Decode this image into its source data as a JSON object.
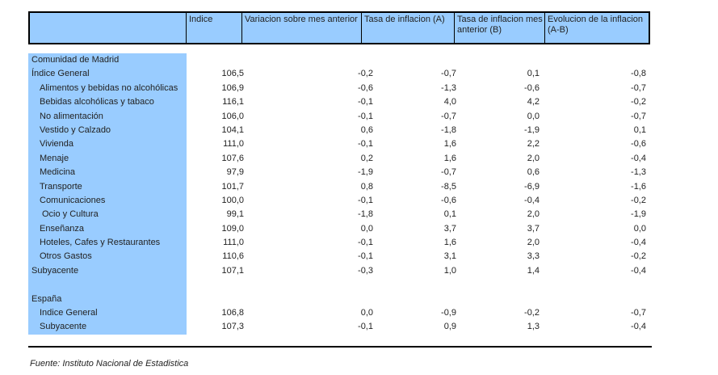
{
  "colors": {
    "header_bg": "#99CCFF",
    "label_col_bg": "#99CCFF",
    "border": "#000000",
    "text": "#222222"
  },
  "header": {
    "columns": [
      "",
      "Indice",
      "Variacion sobre mes anterior",
      "Tasa de inflacion (A)",
      "Tasa de inflacion mes anterior (B)",
      "Evolucion de la inflacion (A-B)"
    ]
  },
  "table": {
    "column_keys": [
      "indice",
      "variacion",
      "tasa-a",
      "tasa-b",
      "evolucion"
    ],
    "rows": [
      {
        "label": "Comunidad de Madrid",
        "indent": 0,
        "values": [
          "",
          "",
          "",
          "",
          ""
        ]
      },
      {
        "label": "Índice General",
        "indent": 0,
        "values": [
          "106,5",
          "-0,2",
          "-0,7",
          "0,1",
          "-0,8"
        ]
      },
      {
        "label": "Alimentos y bebidas no alcohólicas",
        "indent": 1,
        "values": [
          "106,9",
          "-0,6",
          "-1,3",
          "-0,6",
          "-0,7"
        ]
      },
      {
        "label": "Bebidas alcohólicas y tabaco",
        "indent": 1,
        "values": [
          "116,1",
          "-0,1",
          "4,0",
          "4,2",
          "-0,2"
        ]
      },
      {
        "label": "No alimentación",
        "indent": 1,
        "values": [
          "106,0",
          "-0,1",
          "-0,7",
          "0,0",
          "-0,7"
        ]
      },
      {
        "label": "Vestido y Calzado",
        "indent": 1,
        "values": [
          "104,1",
          "0,6",
          "-1,8",
          "-1,9",
          "0,1"
        ]
      },
      {
        "label": "Vivienda",
        "indent": 1,
        "values": [
          "111,0",
          "-0,1",
          "1,6",
          "2,2",
          "-0,6"
        ]
      },
      {
        "label": "Menaje",
        "indent": 1,
        "values": [
          "107,6",
          "0,2",
          "1,6",
          "2,0",
          "-0,4"
        ]
      },
      {
        "label": "Medicina",
        "indent": 1,
        "values": [
          "97,9",
          "-1,9",
          "-0,7",
          "0,6",
          "-1,3"
        ]
      },
      {
        "label": "Transporte",
        "indent": 1,
        "values": [
          "101,7",
          "0,8",
          "-8,5",
          "-6,9",
          "-1,6"
        ]
      },
      {
        "label": "Comunicaciones",
        "indent": 1,
        "values": [
          "100,0",
          "-0,1",
          "-0,6",
          "-0,4",
          "-0,2"
        ]
      },
      {
        "label": "Ocio y Cultura",
        "indent": 2,
        "values": [
          "99,1",
          "-1,8",
          "0,1",
          "2,0",
          "-1,9"
        ]
      },
      {
        "label": "Enseñanza",
        "indent": 1,
        "values": [
          "109,0",
          "0,0",
          "3,7",
          "3,7",
          "0,0"
        ]
      },
      {
        "label": "Hoteles, Cafes y Restaurantes",
        "indent": 1,
        "values": [
          "111,0",
          "-0,1",
          "1,6",
          "2,0",
          "-0,4"
        ]
      },
      {
        "label": "Otros Gastos",
        "indent": 1,
        "values": [
          "110,6",
          "-0,1",
          "3,1",
          "3,3",
          "-0,2"
        ]
      },
      {
        "label": "Subyacente",
        "indent": 0,
        "values": [
          "107,1",
          "-0,3",
          "1,0",
          "1,4",
          "-0,4"
        ]
      },
      {
        "label": "",
        "indent": 0,
        "values": [
          "",
          "",
          "",
          "",
          ""
        ]
      },
      {
        "label": "España",
        "indent": 0,
        "values": [
          "",
          "",
          "",
          "",
          ""
        ]
      },
      {
        "label": "Indice General",
        "indent": 1,
        "values": [
          "106,8",
          "0,0",
          "-0,9",
          "-0,2",
          "-0,7"
        ]
      },
      {
        "label": "Subyacente",
        "indent": 1,
        "values": [
          "107,3",
          "-0,1",
          "0,9",
          "1,3",
          "-0,4"
        ]
      }
    ]
  },
  "footer": {
    "source": "Fuente: Instituto Nacional de Estadistica"
  }
}
